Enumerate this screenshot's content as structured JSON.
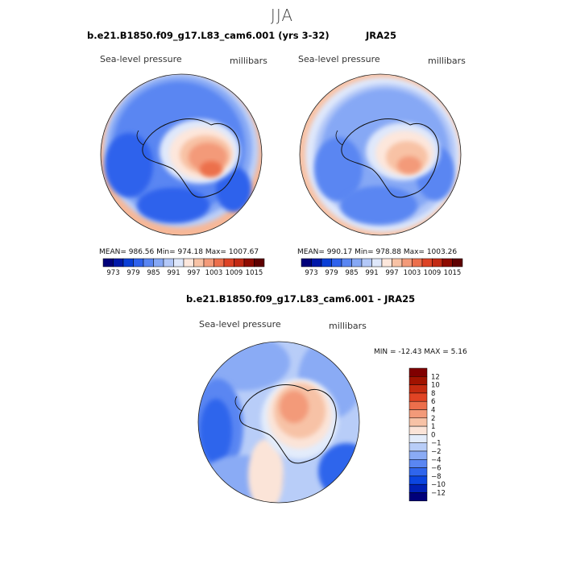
{
  "suptitle": "JJA",
  "panels": [
    {
      "title": "b.e21.B1850.f09_g17.L83_cam6.001 (yrs 3-32)",
      "variable": "Sea-level pressure",
      "units": "millibars",
      "stats": "MEAN= 986.56   Min= 974.18   Max= 1007.67"
    },
    {
      "title": "JRA25",
      "variable": "Sea-level pressure",
      "units": "millibars",
      "stats": "MEAN= 990.17   Min= 978.88   Max= 1003.26"
    },
    {
      "title": "b.e21.B1850.f09_g17.L83_cam6.001 - JRA25",
      "variable": "Sea-level pressure",
      "units": "millibars",
      "stats": "MIN = -12.43 MAX =   5.16"
    }
  ],
  "chart_data": [
    {
      "type": "heatmap",
      "projection": "south-polar-stereographic",
      "title": "b.e21.B1850.f09_g17.L83_cam6.001 (yrs 3-32)",
      "variable": "Sea-level pressure",
      "units": "millibars",
      "mean": 986.56,
      "min": 974.18,
      "max": 1007.67,
      "colorbar": {
        "orientation": "horizontal",
        "levels": [
          973,
          976,
          979,
          982,
          985,
          988,
          991,
          994,
          997,
          1000,
          1003,
          1006,
          1009,
          1012,
          1015
        ],
        "tick_labels": [
          "973",
          "979",
          "985",
          "991",
          "997",
          "1003",
          "1009",
          "1015"
        ],
        "colors": [
          "#00007a",
          "#0018a8",
          "#0a3fd6",
          "#2f62ec",
          "#5a86f2",
          "#86a8f5",
          "#b3c8f8",
          "#dfe8fb",
          "#fde7dc",
          "#f8c2a5",
          "#f39a79",
          "#ec6f4c",
          "#dd4326",
          "#c22a14",
          "#8e0b00",
          "#5e0000"
        ]
      }
    },
    {
      "type": "heatmap",
      "projection": "south-polar-stereographic",
      "title": "JRA25",
      "variable": "Sea-level pressure",
      "units": "millibars",
      "mean": 990.17,
      "min": 978.88,
      "max": 1003.26,
      "colorbar": {
        "orientation": "horizontal",
        "levels": [
          973,
          976,
          979,
          982,
          985,
          988,
          991,
          994,
          997,
          1000,
          1003,
          1006,
          1009,
          1012,
          1015
        ],
        "tick_labels": [
          "973",
          "979",
          "985",
          "991",
          "997",
          "1003",
          "1009",
          "1015"
        ],
        "colors": [
          "#00007a",
          "#0018a8",
          "#0a3fd6",
          "#2f62ec",
          "#5a86f2",
          "#86a8f5",
          "#b3c8f8",
          "#dfe8fb",
          "#fde7dc",
          "#f8c2a5",
          "#f39a79",
          "#ec6f4c",
          "#dd4326",
          "#c22a14",
          "#8e0b00",
          "#5e0000"
        ]
      }
    },
    {
      "type": "heatmap",
      "projection": "south-polar-stereographic",
      "title": "b.e21.B1850.f09_g17.L83_cam6.001 - JRA25",
      "variable": "Sea-level pressure",
      "units": "millibars",
      "min": -12.43,
      "max": 5.16,
      "colorbar": {
        "orientation": "vertical",
        "levels": [
          -12,
          -10,
          -8,
          -6,
          -4,
          -2,
          -1,
          0,
          1,
          2,
          4,
          6,
          8,
          10,
          12
        ],
        "tick_labels": [
          "12",
          "10",
          "8",
          "6",
          "4",
          "2",
          "1",
          "0",
          "−1",
          "−2",
          "−4",
          "−6",
          "−8",
          "−10",
          "−12"
        ],
        "colors": [
          "#00007a",
          "#0020b5",
          "#0b45e0",
          "#2f65ec",
          "#5a86f2",
          "#8aabf5",
          "#b8cdf8",
          "#e3ecfb",
          "#fbe4d8",
          "#f7c2a6",
          "#f39a79",
          "#ec6f4c",
          "#e14424",
          "#c52b10",
          "#a11300",
          "#800000"
        ]
      }
    }
  ]
}
